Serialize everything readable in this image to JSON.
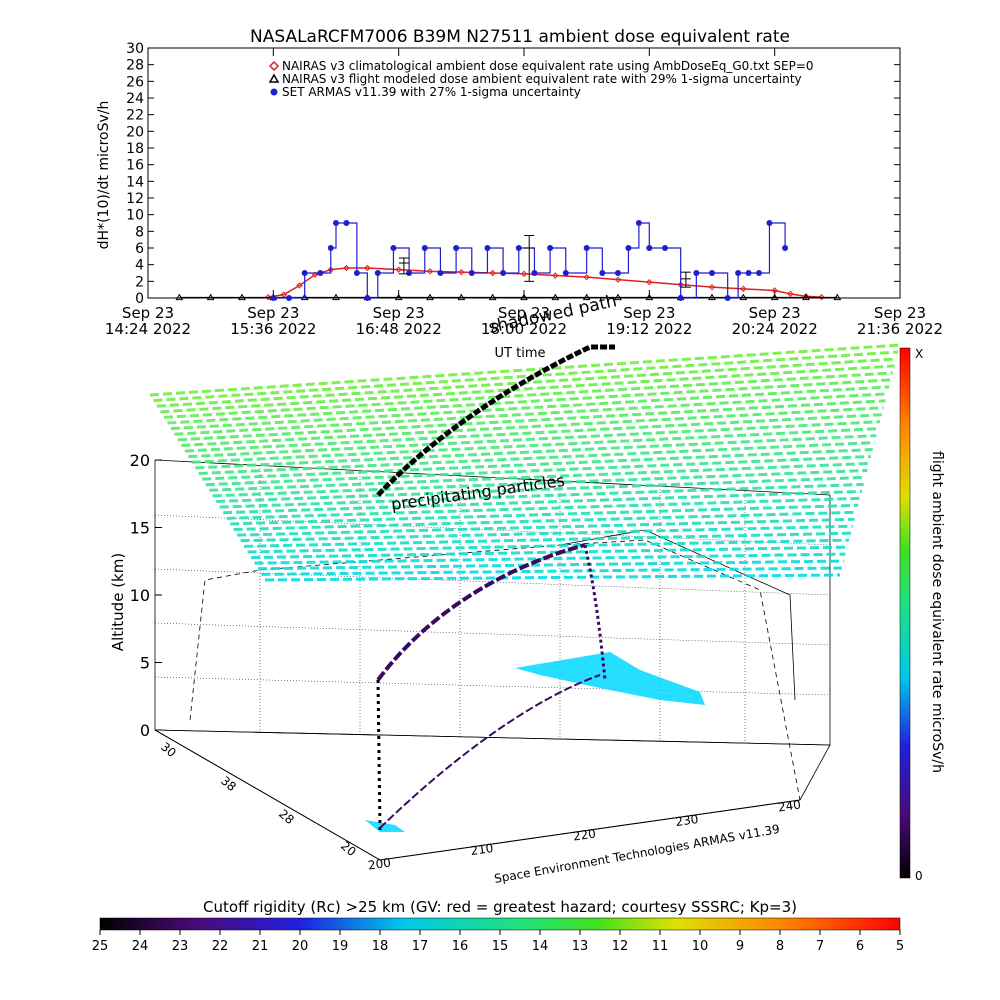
{
  "chart_data": [
    {
      "type": "line",
      "title": "NASALaRCFM7006  B39M N27511 ambient dose equivalent rate",
      "ylabel": "dH*(10)/dt microSv/h",
      "xlabel": "UT time",
      "ylim": [
        0,
        30
      ],
      "y_ticks": [
        "0",
        "2",
        "4",
        "6",
        "8",
        "10",
        "12",
        "14",
        "16",
        "18",
        "20",
        "22",
        "24",
        "26",
        "28",
        "30"
      ],
      "x_ticks": [
        {
          "line1": "Sep 23",
          "line2": "14:24 2022"
        },
        {
          "line1": "Sep 23",
          "line2": "15:36 2022"
        },
        {
          "line1": "Sep 23",
          "line2": "16:48 2022"
        },
        {
          "line1": "Sep 23",
          "line2": "18:00 2022"
        },
        {
          "line1": "Sep 23",
          "line2": "19:12 2022"
        },
        {
          "line1": "Sep 23",
          "line2": "20:24 2022"
        },
        {
          "line1": "Sep 23",
          "line2": "21:36 2022"
        }
      ],
      "legend_position": "top",
      "legend": [
        {
          "label": "NAIRAS v3 climatological ambient dose equivalent rate using AmbDoseEq_G0.txt SEP=0",
          "symbol": "diamond",
          "color": "#e02020"
        },
        {
          "label": "NAIRAS v3 flight modeled dose ambient equivalent rate with 29% 1-sigma uncertainty",
          "symbol": "triangle",
          "color": "#000000"
        },
        {
          "label": "SET ARMAS v11.39 with 27% 1-sigma uncertainty",
          "symbol": "dot",
          "color": "#1f1fd0"
        }
      ],
      "series": [
        {
          "name": "NAIRAS v3 climatological ambient dose equivalent rate using AmbDoseEq_G0.txt SEP=0",
          "color": "#e02020",
          "x_hours": [
            15.55,
            15.7,
            15.85,
            16.0,
            16.15,
            16.3,
            16.5,
            16.8,
            17.1,
            17.4,
            17.7,
            18.0,
            18.3,
            18.6,
            18.9,
            19.2,
            19.5,
            19.8,
            20.1,
            20.4,
            20.55,
            20.7,
            20.85
          ],
          "values": [
            0.1,
            0.4,
            1.5,
            2.8,
            3.4,
            3.6,
            3.6,
            3.4,
            3.2,
            3.1,
            3.0,
            2.9,
            2.7,
            2.5,
            2.2,
            1.9,
            1.6,
            1.3,
            1.1,
            0.9,
            0.5,
            0.2,
            0.1
          ]
        },
        {
          "name": "NAIRAS v3 flight modeled dose ambient equivalent rate with 29% 1-sigma uncertainty",
          "color": "#000000",
          "x_hours": [
            14.7,
            15.0,
            15.3,
            15.6,
            15.9,
            16.2,
            16.5,
            16.8,
            17.1,
            17.4,
            17.7,
            18.0,
            18.3,
            18.6,
            18.9,
            19.2,
            19.5,
            19.8,
            20.1,
            20.4,
            20.7,
            21.0
          ],
          "values": [
            0.05,
            0.05,
            0.05,
            0.05,
            0.05,
            0.05,
            0.05,
            0.05,
            0.05,
            0.05,
            0.05,
            0.05,
            0.05,
            0.05,
            0.05,
            0.05,
            0.05,
            0.05,
            0.05,
            0.05,
            0.05,
            0.05
          ]
        },
        {
          "name": "SET ARMAS v11.39 with 27% 1-sigma uncertainty",
          "color": "#1f1fd0",
          "x_hours": [
            15.6,
            15.75,
            15.9,
            16.05,
            16.15,
            16.2,
            16.3,
            16.4,
            16.5,
            16.6,
            16.75,
            16.9,
            17.05,
            17.2,
            17.35,
            17.5,
            17.65,
            17.8,
            17.95,
            18.1,
            18.25,
            18.4,
            18.6,
            18.75,
            18.9,
            19.0,
            19.1,
            19.2,
            19.35,
            19.5,
            19.65,
            19.8,
            19.95,
            20.05,
            20.15,
            20.25,
            20.35,
            20.5
          ],
          "values": [
            0,
            0,
            3,
            3,
            6,
            9,
            9,
            3,
            0,
            3,
            6,
            3,
            6,
            3,
            6,
            3,
            6,
            3,
            6,
            3,
            6,
            3,
            6,
            3,
            3,
            6,
            9,
            6,
            6,
            0,
            3,
            3,
            0,
            3,
            3,
            3,
            9,
            6
          ]
        }
      ],
      "error_bars": [
        {
          "x_hours": 16.85,
          "value": 4.2,
          "low": 2.9,
          "high": 4.8
        },
        {
          "x_hours": 18.05,
          "value": 6.0,
          "low": 2.0,
          "high": 7.5
        },
        {
          "x_hours": 19.55,
          "value": 2.3,
          "low": 1.3,
          "high": 3.1
        }
      ]
    },
    {
      "type": "scatter",
      "annotations": [
        "shadowed path",
        "precipitating particles"
      ],
      "zlabel": "Altitude (km)",
      "z_ticks": [
        "0",
        "5",
        "10",
        "15",
        "20"
      ],
      "lat_ticks": [
        "30",
        "38",
        "28",
        "20"
      ],
      "lon_ticks": [
        "200",
        "210",
        "220",
        "230",
        "240"
      ],
      "credit": "Space Environment Technologies ARMAS v11.39",
      "colorbar_right": {
        "label": "flight ambient dose equivalent rate microSv/h",
        "top": "X",
        "bottom": "0"
      },
      "colorbar_bottom": {
        "label": "Cutoff rigidity (Rc) >25 km (GV: red = greatest hazard; courtesy SSSRC; Kp=3)",
        "ticks": [
          "25",
          "24",
          "23",
          "22",
          "21",
          "20",
          "19",
          "18",
          "17",
          "16",
          "15",
          "14",
          "13",
          "12",
          "11",
          "10",
          "9",
          "8",
          "7",
          "6",
          "5"
        ]
      }
    }
  ]
}
